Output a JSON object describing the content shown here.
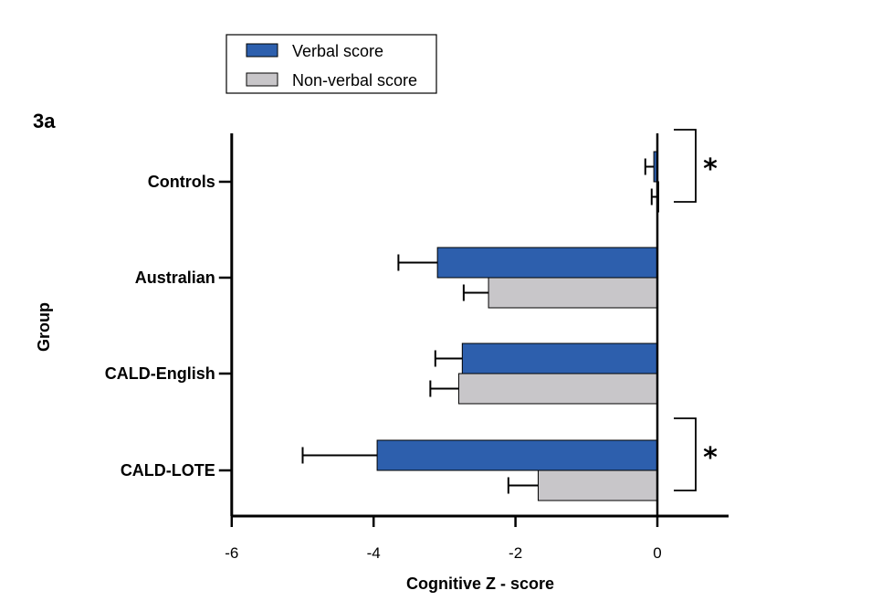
{
  "chart_data": {
    "type": "bar",
    "orientation": "horizontal",
    "panel_label": "3a",
    "xlabel": "Cognitive  Z - score",
    "ylabel": "Group",
    "xlim": [
      -6,
      1
    ],
    "xticks": [
      -6,
      -4,
      -2,
      0
    ],
    "categories": [
      "Controls",
      "Australian",
      "CALD-English",
      "CALD-LOTE"
    ],
    "series": [
      {
        "name": "Verbal score",
        "color": "#2d5fad",
        "values": [
          -0.05,
          -3.1,
          -2.75,
          -3.95
        ],
        "errors": [
          0.12,
          0.55,
          0.38,
          1.05
        ]
      },
      {
        "name": "Non-verbal score",
        "color": "#c8c6c9",
        "values": [
          0.0,
          -2.38,
          -2.8,
          -1.68
        ],
        "errors": [
          0.08,
          0.35,
          0.4,
          0.42
        ]
      }
    ],
    "annotations": [
      {
        "label": "*",
        "category": "Controls"
      },
      {
        "label": "*",
        "category": "CALD-LOTE"
      }
    ],
    "legend_position": "top-left",
    "grid": false
  }
}
